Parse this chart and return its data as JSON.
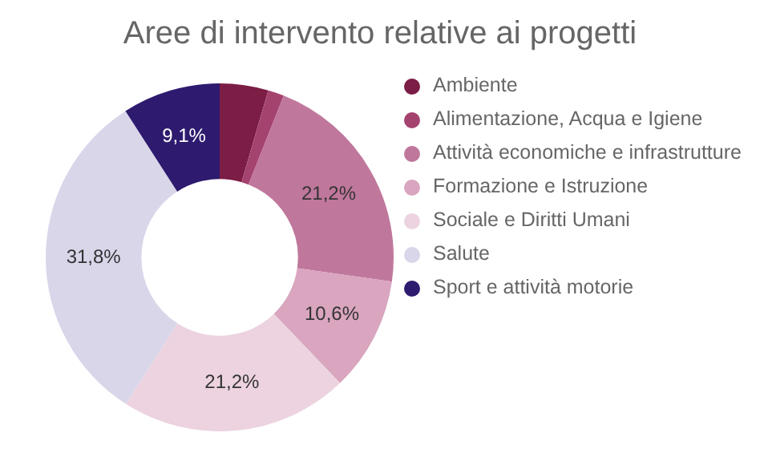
{
  "chart_data": {
    "type": "donut",
    "title": "Aree di intervento relative ai progetti",
    "categories": [
      "Ambiente",
      "Alimentazione, Acqua e Igiene",
      "Attività economiche e infrastrutture",
      "Formazione e Istruzione",
      "Sociale e Diritti Umani",
      "Salute",
      "Sport e attività motorie"
    ],
    "values": [
      4.5,
      1.5,
      21.2,
      10.6,
      21.2,
      31.8,
      9.1
    ],
    "value_labels": [
      null,
      null,
      "21,2%",
      "10,6%",
      "21,2%",
      "31,8%",
      "9,1%"
    ],
    "colors": [
      "#7b1d45",
      "#a5436f",
      "#c0779c",
      "#d9a5bf",
      "#ecd3df",
      "#d9d6ea",
      "#2e1a6e"
    ],
    "legend": "right"
  }
}
